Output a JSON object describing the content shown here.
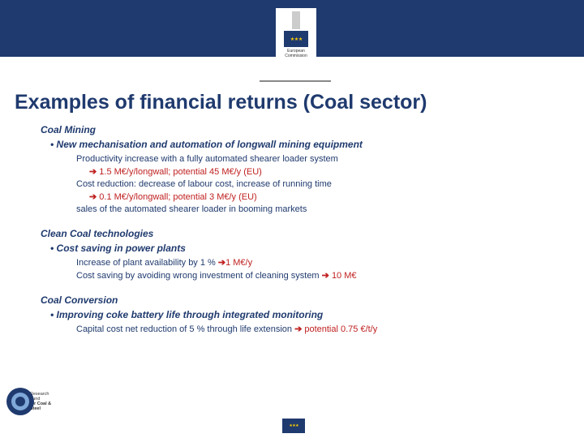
{
  "header": {
    "logo_label1": "European",
    "logo_label2": "Commission"
  },
  "title": {
    "main": "Examples of financial returns",
    "sub": "(Coal sector)"
  },
  "s1": {
    "head": "Coal Mining",
    "bullet": "New mechanisation and automation of longwall mining equipment",
    "d1": "Productivity increase with a fully automated shearer loader system",
    "d1a_val": "1.5 M€/y/longwall; potential 45 M€/y (EU)",
    "d2": "Cost reduction: decrease of labour cost, increase of running time",
    "d2a_val": "0.1 M€/y/longwall; potential 3 M€/y (EU)",
    "d3": "sales of the automated shearer loader in booming markets"
  },
  "s2": {
    "head": "Clean Coal technologies",
    "bullet": "Cost saving in power plants",
    "d1_pre": "Increase of plant availability by 1 % ",
    "d1_val": "1 M€/y",
    "d2_pre": "Cost saving by avoiding wrong investment of cleaning system ",
    "d2_val": "10 M€"
  },
  "s3": {
    "head": "Coal Conversion",
    "bullet": "Improving coke battery life through integrated monitoring",
    "d1_pre": "Capital cost net reduction of 5 % through life extension ",
    "d1_val": "potential 0.75 €/t/y"
  },
  "rfcs": {
    "l1": "Research Fund",
    "l2": "for Coal & Steel"
  },
  "glyphs": {
    "arrow": "➔"
  },
  "colors": {
    "brand": "#1f3a6e",
    "accent": "#c02020"
  }
}
